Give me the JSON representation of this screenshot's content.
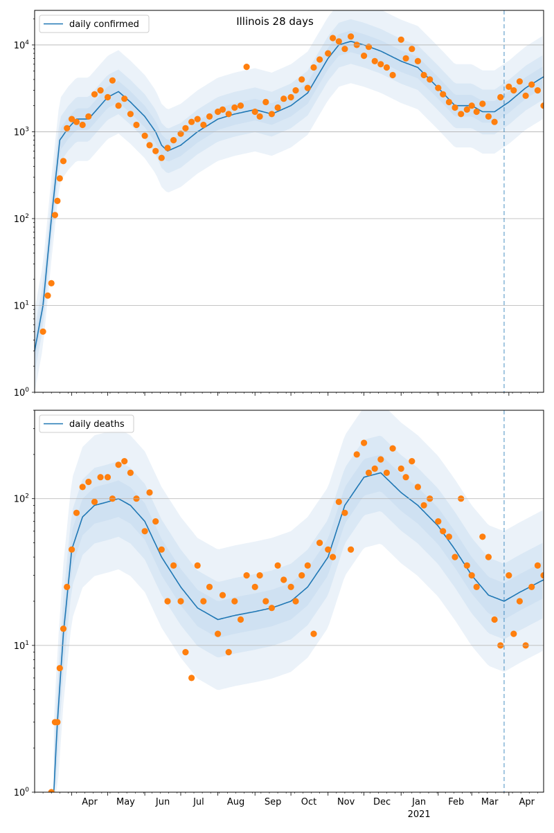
{
  "chart_data": [
    {
      "type": "line",
      "title": "Illinois 28 days",
      "xlabel": "",
      "ylabel": "",
      "yscale": "log",
      "ylim": [
        1,
        25000
      ],
      "xlim": [
        "2020-03-01",
        "2021-04-30"
      ],
      "x_tick_labels": [
        "Apr",
        "May",
        "Jun",
        "Jul",
        "Aug",
        "Sep",
        "Oct",
        "Nov",
        "Dec",
        "Jan",
        "Feb",
        "Mar",
        "Apr"
      ],
      "x_year_label": "2021",
      "y_tick_labels": [
        "10^0",
        "10^1",
        "10^2",
        "10^3",
        "10^4"
      ],
      "grid": "y-major",
      "legend": {
        "placement": "top-left",
        "entries": [
          "daily confirmed"
        ]
      },
      "forecast_start": "2021-03-28",
      "colors": {
        "line": "#1f77b4",
        "points": "#ff7f0e",
        "band": "#c6dbef"
      },
      "series": [
        {
          "name": "daily confirmed",
          "kind": "line-with-bands",
          "dates": [
            "2020-03-01",
            "2020-03-08",
            "2020-03-15",
            "2020-03-22",
            "2020-03-29",
            "2020-04-05",
            "2020-04-15",
            "2020-05-01",
            "2020-05-10",
            "2020-05-20",
            "2020-06-01",
            "2020-06-10",
            "2020-06-15",
            "2020-06-20",
            "2020-07-01",
            "2020-07-15",
            "2020-08-01",
            "2020-08-15",
            "2020-09-01",
            "2020-09-15",
            "2020-10-01",
            "2020-10-15",
            "2020-11-01",
            "2020-11-10",
            "2020-11-20",
            "2020-12-01",
            "2020-12-15",
            "2021-01-01",
            "2021-01-15",
            "2021-02-01",
            "2021-02-15",
            "2021-03-01",
            "2021-03-10",
            "2021-03-20",
            "2021-04-01",
            "2021-04-15",
            "2021-04-30"
          ],
          "values": [
            3,
            10,
            100,
            800,
            1100,
            1400,
            1400,
            2500,
            2900,
            2200,
            1500,
            1000,
            700,
            600,
            700,
            1000,
            1400,
            1600,
            1800,
            1600,
            2000,
            2800,
            7000,
            10000,
            11000,
            10000,
            8500,
            6500,
            5500,
            3200,
            2000,
            2000,
            1700,
            1700,
            2200,
            3200,
            4300
          ]
        },
        {
          "name": "observed",
          "kind": "scatter",
          "dates": [
            "2020-03-08",
            "2020-03-12",
            "2020-03-15",
            "2020-03-18",
            "2020-03-20",
            "2020-03-22",
            "2020-03-25",
            "2020-03-28",
            "2020-04-01",
            "2020-04-05",
            "2020-04-10",
            "2020-04-15",
            "2020-04-20",
            "2020-04-25",
            "2020-05-01",
            "2020-05-05",
            "2020-05-10",
            "2020-05-15",
            "2020-05-20",
            "2020-05-25",
            "2020-06-01",
            "2020-06-05",
            "2020-06-10",
            "2020-06-15",
            "2020-06-20",
            "2020-06-25",
            "2020-07-01",
            "2020-07-05",
            "2020-07-10",
            "2020-07-15",
            "2020-07-20",
            "2020-07-25",
            "2020-08-01",
            "2020-08-05",
            "2020-08-10",
            "2020-08-15",
            "2020-08-20",
            "2020-08-25",
            "2020-09-01",
            "2020-09-05",
            "2020-09-10",
            "2020-09-15",
            "2020-09-20",
            "2020-09-25",
            "2020-10-01",
            "2020-10-05",
            "2020-10-10",
            "2020-10-15",
            "2020-10-20",
            "2020-10-25",
            "2020-11-01",
            "2020-11-05",
            "2020-11-10",
            "2020-11-15",
            "2020-11-20",
            "2020-11-25",
            "2020-12-01",
            "2020-12-05",
            "2020-12-10",
            "2020-12-15",
            "2020-12-20",
            "2020-12-25",
            "2021-01-01",
            "2021-01-05",
            "2021-01-10",
            "2021-01-15",
            "2021-01-20",
            "2021-01-25",
            "2021-02-01",
            "2021-02-05",
            "2021-02-10",
            "2021-02-15",
            "2021-02-20",
            "2021-02-25",
            "2021-03-01",
            "2021-03-05",
            "2021-03-10",
            "2021-03-15",
            "2021-03-20",
            "2021-03-25",
            "2021-04-01",
            "2021-04-05",
            "2021-04-10",
            "2021-04-15",
            "2021-04-20",
            "2021-04-25",
            "2021-04-30"
          ],
          "values": [
            5,
            13,
            18,
            110,
            160,
            290,
            460,
            1100,
            1400,
            1300,
            1200,
            1500,
            2700,
            3000,
            2500,
            3900,
            2000,
            2400,
            1600,
            1200,
            900,
            700,
            600,
            500,
            650,
            800,
            950,
            1100,
            1300,
            1400,
            1200,
            1500,
            1700,
            1800,
            1600,
            1900,
            2000,
            5600,
            1700,
            1500,
            2200,
            1600,
            1900,
            2400,
            2500,
            3000,
            4000,
            3200,
            5500,
            6800,
            8000,
            12000,
            11000,
            9000,
            12500,
            10000,
            7500,
            9500,
            6500,
            6000,
            5500,
            4500,
            11500,
            7000,
            9000,
            6500,
            4500,
            4000,
            3200,
            2700,
            2200,
            1900,
            1600,
            1800,
            2000,
            1700,
            2100,
            1500,
            1300,
            2500,
            3300,
            3000,
            3800,
            2600,
            3500,
            3000,
            2000
          ]
        }
      ]
    },
    {
      "type": "line",
      "title": "",
      "xlabel": "",
      "ylabel": "",
      "yscale": "log",
      "ylim": [
        1,
        400
      ],
      "xlim": [
        "2020-03-01",
        "2021-04-30"
      ],
      "x_tick_labels": [
        "Apr",
        "May",
        "Jun",
        "Jul",
        "Aug",
        "Sep",
        "Oct",
        "Nov",
        "Dec",
        "Jan",
        "Feb",
        "Mar",
        "Apr"
      ],
      "x_year_label": "2021",
      "y_tick_labels": [
        "10^0",
        "10^1",
        "10^2"
      ],
      "grid": "y-major",
      "legend": {
        "placement": "top-left",
        "entries": [
          "daily deaths"
        ]
      },
      "forecast_start": "2021-03-28",
      "colors": {
        "line": "#1f77b4",
        "points": "#ff7f0e",
        "band": "#c6dbef"
      },
      "series": [
        {
          "name": "daily deaths",
          "kind": "line-with-bands",
          "dates": [
            "2020-03-17",
            "2020-03-20",
            "2020-03-25",
            "2020-04-01",
            "2020-04-10",
            "2020-04-20",
            "2020-05-01",
            "2020-05-10",
            "2020-05-20",
            "2020-06-01",
            "2020-06-15",
            "2020-07-01",
            "2020-07-15",
            "2020-08-01",
            "2020-08-15",
            "2020-09-01",
            "2020-09-15",
            "2020-10-01",
            "2020-10-15",
            "2020-11-01",
            "2020-11-15",
            "2020-12-01",
            "2020-12-15",
            "2021-01-01",
            "2021-01-15",
            "2021-02-01",
            "2021-02-15",
            "2021-03-01",
            "2021-03-15",
            "2021-03-28",
            "2021-04-10",
            "2021-04-30"
          ],
          "values": [
            1,
            3,
            12,
            45,
            75,
            90,
            95,
            100,
            90,
            70,
            40,
            25,
            18,
            15,
            16,
            17,
            18,
            20,
            25,
            40,
            90,
            140,
            150,
            110,
            90,
            65,
            45,
            30,
            22,
            20,
            23,
            28
          ]
        },
        {
          "name": "observed",
          "kind": "scatter",
          "dates": [
            "2020-03-15",
            "2020-03-18",
            "2020-03-20",
            "2020-03-22",
            "2020-03-25",
            "2020-03-28",
            "2020-04-01",
            "2020-04-05",
            "2020-04-10",
            "2020-04-15",
            "2020-04-20",
            "2020-04-25",
            "2020-05-01",
            "2020-05-05",
            "2020-05-10",
            "2020-05-15",
            "2020-05-20",
            "2020-05-25",
            "2020-06-01",
            "2020-06-05",
            "2020-06-10",
            "2020-06-15",
            "2020-06-20",
            "2020-06-25",
            "2020-07-01",
            "2020-07-05",
            "2020-07-10",
            "2020-07-15",
            "2020-07-20",
            "2020-07-25",
            "2020-08-01",
            "2020-08-05",
            "2020-08-10",
            "2020-08-15",
            "2020-08-20",
            "2020-08-25",
            "2020-09-01",
            "2020-09-05",
            "2020-09-10",
            "2020-09-15",
            "2020-09-20",
            "2020-09-25",
            "2020-10-01",
            "2020-10-05",
            "2020-10-10",
            "2020-10-15",
            "2020-10-20",
            "2020-10-25",
            "2020-11-01",
            "2020-11-05",
            "2020-11-10",
            "2020-11-15",
            "2020-11-20",
            "2020-11-25",
            "2020-12-01",
            "2020-12-05",
            "2020-12-10",
            "2020-12-15",
            "2020-12-20",
            "2020-12-25",
            "2021-01-01",
            "2021-01-05",
            "2021-01-10",
            "2021-01-15",
            "2021-01-20",
            "2021-01-25",
            "2021-02-01",
            "2021-02-05",
            "2021-02-10",
            "2021-02-15",
            "2021-02-20",
            "2021-02-25",
            "2021-03-01",
            "2021-03-05",
            "2021-03-10",
            "2021-03-15",
            "2021-03-20",
            "2021-03-25",
            "2021-04-01",
            "2021-04-05",
            "2021-04-10",
            "2021-04-15",
            "2021-04-20",
            "2021-04-25",
            "2021-04-30"
          ],
          "values": [
            1,
            3,
            3,
            7,
            13,
            25,
            45,
            80,
            120,
            130,
            95,
            140,
            140,
            100,
            170,
            180,
            150,
            100,
            60,
            110,
            70,
            45,
            20,
            35,
            20,
            9,
            6,
            35,
            20,
            25,
            12,
            22,
            9,
            20,
            15,
            30,
            25,
            30,
            20,
            18,
            35,
            28,
            25,
            20,
            30,
            35,
            12,
            50,
            45,
            40,
            95,
            80,
            45,
            200,
            240,
            150,
            160,
            185,
            150,
            220,
            160,
            140,
            180,
            120,
            90,
            100,
            70,
            60,
            55,
            40,
            100,
            35,
            30,
            25,
            55,
            40,
            15,
            10,
            30,
            12,
            20,
            10,
            25,
            35,
            30
          ]
        }
      ]
    }
  ]
}
